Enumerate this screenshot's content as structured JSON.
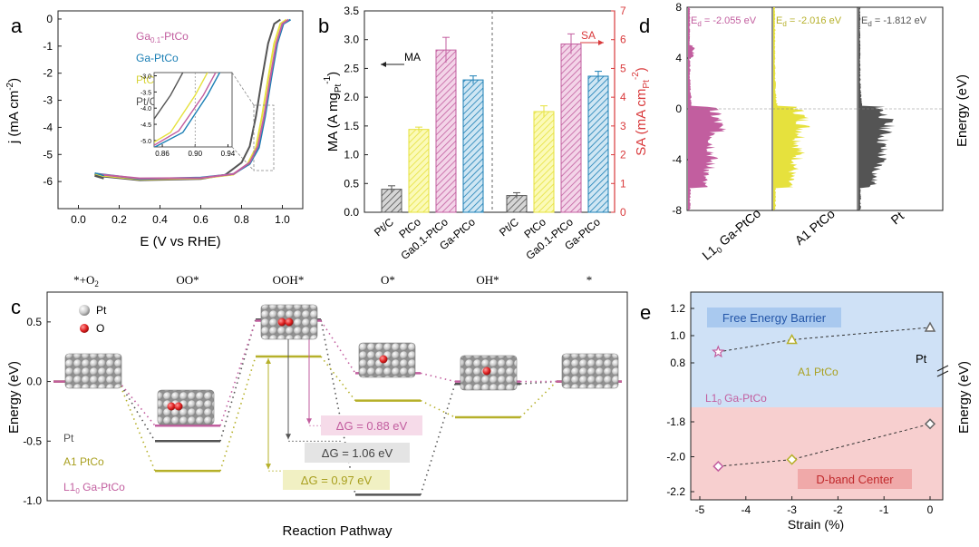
{
  "colors": {
    "gaptco": "#c25e9f",
    "ga_ptco": "#1b7fb5",
    "ptco": "#e6e13d",
    "ptc": "#545454",
    "red": "#d9393b",
    "pink_text": "#c25e9f",
    "olive_text": "#a9a020"
  },
  "panel_labels": {
    "a": "a",
    "b": "b",
    "c": "c",
    "d": "d",
    "e": "e"
  },
  "chart_data": [
    {
      "id": "a",
      "type": "line",
      "xlabel": "E (V vs RHE)",
      "ylabel": "j (mA cm-2)",
      "xlim": [
        -0.1,
        1.1
      ],
      "ylim": [
        -7,
        0.3
      ],
      "xticks": [
        "0.0",
        "0.2",
        "0.4",
        "0.6",
        "0.8",
        "1.0"
      ],
      "yticks": [
        "0",
        "-1",
        "-2",
        "-3",
        "-4",
        "-5",
        "-6"
      ],
      "legend": [
        "Ga0.1-PtCo",
        "Ga-PtCo",
        "PtCo",
        "Pt/C"
      ],
      "series": [
        {
          "name": "Ga0.1-PtCo",
          "points": [
            [
              0.08,
              -5.72
            ],
            [
              0.3,
              -5.88
            ],
            [
              0.6,
              -5.87
            ],
            [
              0.76,
              -5.72
            ],
            [
              0.84,
              -5.3
            ],
            [
              0.88,
              -4.7
            ],
            [
              0.91,
              -3.6
            ],
            [
              0.94,
              -2.2
            ],
            [
              0.97,
              -0.9
            ],
            [
              1.0,
              -0.18
            ],
            [
              1.03,
              -0.02
            ]
          ]
        },
        {
          "name": "Ga-PtCo",
          "points": [
            [
              0.08,
              -5.7
            ],
            [
              0.3,
              -5.9
            ],
            [
              0.6,
              -5.85
            ],
            [
              0.76,
              -5.72
            ],
            [
              0.84,
              -5.35
            ],
            [
              0.885,
              -4.75
            ],
            [
              0.915,
              -3.6
            ],
            [
              0.945,
              -2.2
            ],
            [
              0.975,
              -0.9
            ],
            [
              1.005,
              -0.18
            ],
            [
              1.04,
              -0.02
            ]
          ]
        },
        {
          "name": "PtCo",
          "points": [
            [
              0.08,
              -5.75
            ],
            [
              0.3,
              -5.92
            ],
            [
              0.6,
              -5.88
            ],
            [
              0.76,
              -5.74
            ],
            [
              0.83,
              -5.35
            ],
            [
              0.87,
              -4.75
            ],
            [
              0.9,
              -3.6
            ],
            [
              0.93,
              -2.2
            ],
            [
              0.96,
              -0.9
            ],
            [
              0.99,
              -0.18
            ],
            [
              1.02,
              -0.02
            ]
          ]
        },
        {
          "name": "Pt/C",
          "points": [
            [
              0.08,
              -5.78
            ],
            [
              0.3,
              -5.95
            ],
            [
              0.6,
              -5.9
            ],
            [
              0.72,
              -5.75
            ],
            [
              0.8,
              -5.3
            ],
            [
              0.84,
              -4.7
            ],
            [
              0.87,
              -3.6
            ],
            [
              0.9,
              -2.2
            ],
            [
              0.93,
              -0.9
            ],
            [
              0.96,
              -0.18
            ],
            [
              0.99,
              -0.02
            ]
          ]
        }
      ],
      "inset": {
        "xticks": [
          "0.86",
          "0.90",
          "0.94"
        ],
        "yticks": [
          "-3.0",
          "-3.5",
          "-4.0",
          "-4.5",
          "-5.0"
        ],
        "xlim": [
          0.85,
          0.945
        ],
        "ylim": [
          -5.2,
          -2.9
        ]
      }
    },
    {
      "id": "b",
      "type": "bar",
      "categories": [
        "Pt/C",
        "PtCo",
        "Ga0.1-PtCo",
        "Ga-PtCo"
      ],
      "ylabel_left": "MA (A mgPt-1)",
      "ylabel_right": "SA (mA cmPt-2)",
      "ylim_left": [
        0,
        3.5
      ],
      "ylim_right": [
        0,
        7
      ],
      "yticks_left": [
        "0.0",
        "0.5",
        "1.0",
        "1.5",
        "2.0",
        "2.5",
        "3.0",
        "3.5"
      ],
      "yticks_right": [
        "0",
        "1",
        "2",
        "3",
        "4",
        "5",
        "6",
        "7"
      ],
      "series": [
        {
          "name": "MA",
          "values": [
            0.4,
            1.44,
            2.82,
            2.3
          ],
          "errors": [
            0.06,
            0.04,
            0.22,
            0.07
          ]
        },
        {
          "name": "SA",
          "values": [
            0.58,
            3.5,
            5.85,
            4.73
          ],
          "errors": [
            0.1,
            0.2,
            0.35,
            0.17
          ]
        }
      ],
      "annotations": {
        "ma": "MA",
        "sa": "SA"
      }
    },
    {
      "id": "d",
      "type": "area",
      "ylabel": "Energy (eV)",
      "ylim": [
        -8,
        8
      ],
      "yticks": [
        "8",
        "4",
        "0",
        "-4",
        "-8"
      ],
      "panels": [
        {
          "name": "L10 Ga-PtCo",
          "ed": "-2.055 eV"
        },
        {
          "name": "A1 PtCo",
          "ed": "-2.016 eV"
        },
        {
          "name": "Pt",
          "ed": "-1.812 eV"
        }
      ]
    },
    {
      "id": "c",
      "type": "line",
      "xlabel": "Reaction Pathway",
      "ylabel": "Energy (eV)",
      "ylim": [
        -1.0,
        0.75
      ],
      "yticks": [
        "0.5",
        "0.0",
        "-0.5",
        "-1.0"
      ],
      "steps": [
        "*+O2",
        "OO*",
        "OOH*",
        "O*",
        "OH*",
        "*"
      ],
      "series": [
        {
          "name": "Pt",
          "values": [
            0.0,
            -0.5,
            0.52,
            -0.95,
            -0.02,
            0.0
          ]
        },
        {
          "name": "A1 PtCo",
          "values": [
            0.0,
            -0.75,
            0.21,
            -0.16,
            -0.3,
            0.0
          ]
        },
        {
          "name": "L10 Ga-PtCo",
          "values": [
            0.0,
            -0.37,
            0.51,
            0.07,
            0.0,
            0.0
          ]
        }
      ],
      "legend_atoms": [
        "Pt",
        "O"
      ],
      "annotations": [
        "ΔG = 0.88 eV",
        "ΔG = 1.06 eV",
        "ΔG = 0.97 eV"
      ]
    },
    {
      "id": "e",
      "type": "scatter",
      "xlabel": "Strain (%)",
      "ylabel": "Energy (eV)",
      "xlim": [
        -5,
        0
      ],
      "xticks": [
        "-5",
        "-4",
        "-3",
        "-2",
        "-1",
        "0"
      ],
      "yticks_top": [
        "1.2",
        "1.0",
        "0.8"
      ],
      "yticks_bottom": [
        "-1.8",
        "-2.0",
        "-2.2"
      ],
      "series": [
        {
          "name": "Free Energy Barrier",
          "points": [
            [
              -4.6,
              0.88
            ],
            [
              -3.0,
              0.97
            ],
            [
              0,
              1.06
            ]
          ]
        },
        {
          "name": "D-band Center",
          "points": [
            [
              -4.6,
              -2.055
            ],
            [
              -3.0,
              -2.016
            ],
            [
              0,
              -1.812
            ]
          ]
        }
      ],
      "labels": {
        "pt": "Pt",
        "a1": "A1 PtCo",
        "l10": "L10 Ga-PtCo",
        "fe": "Free Energy Barrier",
        "db": "D-band Center"
      }
    }
  ]
}
